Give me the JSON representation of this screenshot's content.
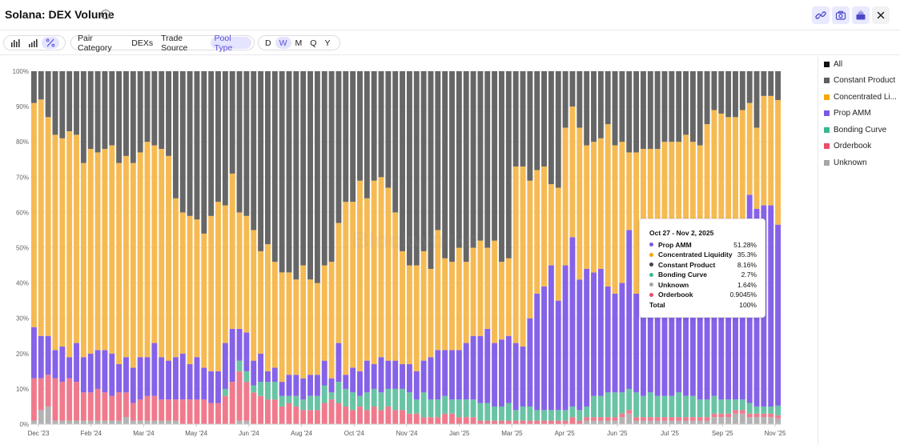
{
  "header": {
    "title": "Solana: DEX Volume",
    "info_icon": "info-icon",
    "buttons": [
      "link-icon",
      "camera-icon",
      "add-to-dashboard-icon",
      "close-icon"
    ]
  },
  "toolbar": {
    "chart_modes": [
      "bar-chart-icon",
      "stacked-bar-icon",
      "percent-icon"
    ],
    "active_mode": "percent-icon",
    "groupings": [
      "Pair Category",
      "DEXs",
      "Trade Source",
      "Pool Type"
    ],
    "active_grouping": "Pool Type",
    "periods": [
      "D",
      "W",
      "M",
      "Q",
      "Y"
    ],
    "active_period": "W"
  },
  "legend": [
    {
      "label": "All",
      "color": "#111111"
    },
    {
      "label": "Constant Product",
      "color": "#5f5f5f"
    },
    {
      "label": "Concentrated Li...",
      "color": "#f2a900"
    },
    {
      "label": "Prop AMM",
      "color": "#7b57e6"
    },
    {
      "label": "Bonding Curve",
      "color": "#3fb593"
    },
    {
      "label": "Orderbook",
      "color": "#ea4f68"
    },
    {
      "label": "Unknown",
      "color": "#a6a6a6"
    }
  ],
  "tooltip": {
    "date": "Oct 27 - Nov 2, 2025",
    "rows": [
      {
        "name": "Prop AMM",
        "value": "51.28%",
        "color": "#7b57e6"
      },
      {
        "name": "Concentrated Liquidity",
        "value": "35.3%",
        "color": "#f2a900"
      },
      {
        "name": "Constant Product",
        "value": "8.16%",
        "color": "#444444"
      },
      {
        "name": "Bonding Curve",
        "value": "2.7%",
        "color": "#3fb593"
      },
      {
        "name": "Unknown",
        "value": "1.64%",
        "color": "#a6a6a6"
      },
      {
        "name": "Orderbook",
        "value": "0.9045%",
        "color": "#ea4f68"
      }
    ],
    "total_label": "Total",
    "total_value": "100%"
  },
  "watermark": "Blockworks",
  "chart_data": {
    "type": "bar",
    "stacked": "percent",
    "title": "",
    "xlabel": "",
    "ylabel": "",
    "ylim": [
      0,
      100
    ],
    "y_ticks": [
      "0%",
      "10%",
      "20%",
      "30%",
      "40%",
      "50%",
      "60%",
      "70%",
      "80%",
      "90%",
      "100%"
    ],
    "x_tick_labels": [
      "Dec '23",
      "Feb '24",
      "Mar '24",
      "May '24",
      "Jun '24",
      "Aug '24",
      "Oct '24",
      "Nov '24",
      "Jan '25",
      "Mar '25",
      "Apr '25",
      "Jun '25",
      "Jul '25",
      "Sep '25",
      "Nov '25"
    ],
    "grid": true,
    "legend_position": "right",
    "stack_order": [
      "Unknown",
      "Orderbook",
      "Bonding Curve",
      "Prop AMM",
      "Concentrated Liquidity",
      "Constant Product"
    ],
    "series_colors": {
      "Unknown": "#b3b3b3",
      "Orderbook": "#f07a8c",
      "Bonding Curve": "#68c4a4",
      "Prop AMM": "#8562e8",
      "Concentrated Liquidity": "#f6ba52",
      "Constant Product": "#666666"
    },
    "points": [
      {
        "unk": 1,
        "ob": 12,
        "bc": 0,
        "prop": 14.5,
        "cl": 63.5,
        "cp": 9
      },
      {
        "unk": 4,
        "ob": 9,
        "bc": 0,
        "prop": 12,
        "cl": 67,
        "cp": 8
      },
      {
        "unk": 5,
        "ob": 9,
        "bc": 0,
        "prop": 11,
        "cl": 62,
        "cp": 13
      },
      {
        "unk": 1,
        "ob": 12,
        "bc": 0,
        "prop": 8,
        "cl": 61,
        "cp": 18
      },
      {
        "unk": 1,
        "ob": 11,
        "bc": 0,
        "prop": 10,
        "cl": 59,
        "cp": 19
      },
      {
        "unk": 1,
        "ob": 12,
        "bc": 0,
        "prop": 6,
        "cl": 64,
        "cp": 17
      },
      {
        "unk": 1,
        "ob": 11,
        "bc": 0,
        "prop": 11,
        "cl": 59,
        "cp": 18
      },
      {
        "unk": 1,
        "ob": 8,
        "bc": 0,
        "prop": 10,
        "cl": 55,
        "cp": 26
      },
      {
        "unk": 1,
        "ob": 8,
        "bc": 0,
        "prop": 11,
        "cl": 58,
        "cp": 22
      },
      {
        "unk": 1,
        "ob": 9,
        "bc": 0,
        "prop": 11,
        "cl": 56,
        "cp": 23
      },
      {
        "unk": 1,
        "ob": 8,
        "bc": 0,
        "prop": 12,
        "cl": 57,
        "cp": 22
      },
      {
        "unk": 1,
        "ob": 7,
        "bc": 0,
        "prop": 12,
        "cl": 59,
        "cp": 21
      },
      {
        "unk": 1,
        "ob": 8,
        "bc": 0,
        "prop": 8,
        "cl": 57,
        "cp": 26
      },
      {
        "unk": 2,
        "ob": 7,
        "bc": 0,
        "prop": 10,
        "cl": 57,
        "cp": 24
      },
      {
        "unk": 1,
        "ob": 5,
        "bc": 0,
        "prop": 10,
        "cl": 58,
        "cp": 26
      },
      {
        "unk": 1,
        "ob": 6,
        "bc": 0,
        "prop": 12,
        "cl": 58,
        "cp": 23
      },
      {
        "unk": 1,
        "ob": 7,
        "bc": 0,
        "prop": 11,
        "cl": 61,
        "cp": 20
      },
      {
        "unk": 1,
        "ob": 7,
        "bc": 0,
        "prop": 15,
        "cl": 56,
        "cp": 21
      },
      {
        "unk": 1,
        "ob": 6,
        "bc": 0,
        "prop": 12,
        "cl": 59,
        "cp": 22
      },
      {
        "unk": 1,
        "ob": 6,
        "bc": 0,
        "prop": 11,
        "cl": 58,
        "cp": 24
      },
      {
        "unk": 1,
        "ob": 6,
        "bc": 0,
        "prop": 12,
        "cl": 45,
        "cp": 36
      },
      {
        "unk": 0,
        "ob": 7,
        "bc": 0,
        "prop": 13,
        "cl": 40,
        "cp": 40
      },
      {
        "unk": 0,
        "ob": 7,
        "bc": 0,
        "prop": 10,
        "cl": 42,
        "cp": 41
      },
      {
        "unk": 0,
        "ob": 7,
        "bc": 0,
        "prop": 12,
        "cl": 39,
        "cp": 42
      },
      {
        "unk": 0,
        "ob": 7,
        "bc": 0,
        "prop": 9,
        "cl": 38,
        "cp": 46
      },
      {
        "unk": 0,
        "ob": 6,
        "bc": 0,
        "prop": 9,
        "cl": 44,
        "cp": 41
      },
      {
        "unk": 0,
        "ob": 6,
        "bc": 0,
        "prop": 9,
        "cl": 48,
        "cp": 37
      },
      {
        "unk": 0,
        "ob": 8,
        "bc": 2,
        "prop": 13,
        "cl": 39,
        "cp": 38
      },
      {
        "unk": 0,
        "ob": 12,
        "bc": 0,
        "prop": 15,
        "cl": 44,
        "cp": 29
      },
      {
        "unk": 1,
        "ob": 14,
        "bc": 3,
        "prop": 9,
        "cl": 33,
        "cp": 40
      },
      {
        "unk": 1,
        "ob": 11,
        "bc": 3,
        "prop": 11,
        "cl": 33,
        "cp": 41
      },
      {
        "unk": 0,
        "ob": 9,
        "bc": 2,
        "prop": 7,
        "cl": 37,
        "cp": 45
      },
      {
        "unk": 0,
        "ob": 8,
        "bc": 4,
        "prop": 8,
        "cl": 29,
        "cp": 51
      },
      {
        "unk": 0,
        "ob": 7,
        "bc": 5,
        "prop": 3,
        "cl": 36,
        "cp": 49
      },
      {
        "unk": 0,
        "ob": 7,
        "bc": 5,
        "prop": 4,
        "cl": 30,
        "cp": 54
      },
      {
        "unk": 0,
        "ob": 5,
        "bc": 3,
        "prop": 4,
        "cl": 31,
        "cp": 57
      },
      {
        "unk": 0,
        "ob": 6,
        "bc": 2,
        "prop": 6,
        "cl": 29,
        "cp": 57
      },
      {
        "unk": 0,
        "ob": 5,
        "bc": 3,
        "prop": 6,
        "cl": 27,
        "cp": 59
      },
      {
        "unk": 0,
        "ob": 4,
        "bc": 3,
        "prop": 6,
        "cl": 32,
        "cp": 55
      },
      {
        "unk": 0,
        "ob": 4,
        "bc": 4,
        "prop": 6,
        "cl": 27,
        "cp": 59
      },
      {
        "unk": 0,
        "ob": 4,
        "bc": 4,
        "prop": 6,
        "cl": 26,
        "cp": 60
      },
      {
        "unk": 0,
        "ob": 6,
        "bc": 5,
        "prop": 7,
        "cl": 27,
        "cp": 55
      },
      {
        "unk": 0,
        "ob": 7,
        "bc": 2,
        "prop": 4,
        "cl": 33,
        "cp": 54
      },
      {
        "unk": 0,
        "ob": 6,
        "bc": 6,
        "prop": 11,
        "cl": 34,
        "cp": 43
      },
      {
        "unk": 0,
        "ob": 5,
        "bc": 5,
        "prop": 4,
        "cl": 49,
        "cp": 37
      },
      {
        "unk": 0,
        "ob": 4,
        "bc": 5,
        "prop": 7,
        "cl": 47,
        "cp": 37
      },
      {
        "unk": 0,
        "ob": 5,
        "bc": 3,
        "prop": 7,
        "cl": 54,
        "cp": 31
      },
      {
        "unk": 0,
        "ob": 4,
        "bc": 5,
        "prop": 9,
        "cl": 46,
        "cp": 36
      },
      {
        "unk": 0,
        "ob": 5,
        "bc": 5,
        "prop": 7,
        "cl": 52,
        "cp": 31
      },
      {
        "unk": 0,
        "ob": 4,
        "bc": 5,
        "prop": 10,
        "cl": 51,
        "cp": 30
      },
      {
        "unk": 0,
        "ob": 5,
        "bc": 5,
        "prop": 8,
        "cl": 49,
        "cp": 33
      },
      {
        "unk": 0,
        "ob": 4,
        "bc": 6,
        "prop": 8,
        "cl": 42,
        "cp": 40
      },
      {
        "unk": 0,
        "ob": 4,
        "bc": 6,
        "prop": 7,
        "cl": 32,
        "cp": 51
      },
      {
        "unk": 0,
        "ob": 3,
        "bc": 6,
        "prop": 8,
        "cl": 28,
        "cp": 55
      },
      {
        "unk": 0,
        "ob": 3,
        "bc": 4,
        "prop": 8,
        "cl": 30,
        "cp": 55
      },
      {
        "unk": 0,
        "ob": 2,
        "bc": 7,
        "prop": 9,
        "cl": 31,
        "cp": 51
      },
      {
        "unk": 0,
        "ob": 2,
        "bc": 5,
        "prop": 12,
        "cl": 25,
        "cp": 56
      },
      {
        "unk": 0,
        "ob": 2,
        "bc": 5,
        "prop": 14,
        "cl": 34,
        "cp": 45
      },
      {
        "unk": 0,
        "ob": 3,
        "bc": 5,
        "prop": 13,
        "cl": 26,
        "cp": 53
      },
      {
        "unk": 0,
        "ob": 3,
        "bc": 4,
        "prop": 14,
        "cl": 25,
        "cp": 54
      },
      {
        "unk": 0,
        "ob": 2,
        "bc": 5,
        "prop": 14,
        "cl": 29,
        "cp": 50
      },
      {
        "unk": 0,
        "ob": 2,
        "bc": 5,
        "prop": 16,
        "cl": 23,
        "cp": 54
      },
      {
        "unk": 0,
        "ob": 2,
        "bc": 5,
        "prop": 18,
        "cl": 25,
        "cp": 50
      },
      {
        "unk": 0,
        "ob": 1,
        "bc": 5,
        "prop": 19,
        "cl": 27,
        "cp": 48
      },
      {
        "unk": 0,
        "ob": 1,
        "bc": 5,
        "prop": 21,
        "cl": 23,
        "cp": 50
      },
      {
        "unk": 0,
        "ob": 1,
        "bc": 4,
        "prop": 18,
        "cl": 29,
        "cp": 48
      },
      {
        "unk": 0,
        "ob": 1,
        "bc": 4,
        "prop": 19,
        "cl": 22,
        "cp": 54
      },
      {
        "unk": 0,
        "ob": 1,
        "bc": 5,
        "prop": 19,
        "cl": 22,
        "cp": 53
      },
      {
        "unk": 0,
        "ob": 1,
        "bc": 3,
        "prop": 19,
        "cl": 50,
        "cp": 27
      },
      {
        "unk": 0,
        "ob": 1,
        "bc": 4,
        "prop": 17,
        "cl": 51,
        "cp": 27
      },
      {
        "unk": 0,
        "ob": 1,
        "bc": 4,
        "prop": 25,
        "cl": 39,
        "cp": 31
      },
      {
        "unk": 0,
        "ob": 1,
        "bc": 3,
        "prop": 33,
        "cl": 35,
        "cp": 28
      },
      {
        "unk": 0,
        "ob": 1,
        "bc": 3,
        "prop": 35,
        "cl": 34,
        "cp": 27
      },
      {
        "unk": 0,
        "ob": 1,
        "bc": 3,
        "prop": 41,
        "cl": 23,
        "cp": 32
      },
      {
        "unk": 0,
        "ob": 1,
        "bc": 3,
        "prop": 31,
        "cl": 32,
        "cp": 33
      },
      {
        "unk": 0,
        "ob": 1,
        "bc": 3,
        "prop": 41,
        "cl": 39,
        "cp": 16
      },
      {
        "unk": 0,
        "ob": 2,
        "bc": 3,
        "prop": 48,
        "cl": 37,
        "cp": 10
      },
      {
        "unk": 0,
        "ob": 1,
        "bc": 3,
        "prop": 37,
        "cl": 43,
        "cp": 16
      },
      {
        "unk": 1,
        "ob": 1,
        "bc": 3,
        "prop": 39,
        "cl": 35,
        "cp": 21
      },
      {
        "unk": 1,
        "ob": 1,
        "bc": 6,
        "prop": 35,
        "cl": 37,
        "cp": 20
      },
      {
        "unk": 1,
        "ob": 1,
        "bc": 6,
        "prop": 36,
        "cl": 37,
        "cp": 19
      },
      {
        "unk": 1,
        "ob": 1,
        "bc": 7,
        "prop": 30,
        "cl": 46,
        "cp": 15
      },
      {
        "unk": 1,
        "ob": 1,
        "bc": 7,
        "prop": 28,
        "cl": 42,
        "cp": 21
      },
      {
        "unk": 2,
        "ob": 1,
        "bc": 6,
        "prop": 31,
        "cl": 40,
        "cp": 20
      },
      {
        "unk": 3,
        "ob": 1,
        "bc": 6,
        "prop": 45,
        "cl": 22,
        "cp": 23
      },
      {
        "unk": 1,
        "ob": 1,
        "bc": 7,
        "prop": 28,
        "cl": 40,
        "cp": 23
      },
      {
        "unk": 1,
        "ob": 1,
        "bc": 6,
        "prop": 28,
        "cl": 42,
        "cp": 22
      },
      {
        "unk": 1,
        "ob": 1,
        "bc": 7,
        "prop": 25,
        "cl": 44,
        "cp": 22
      },
      {
        "unk": 1,
        "ob": 1,
        "bc": 6,
        "prop": 31,
        "cl": 39,
        "cp": 22
      },
      {
        "unk": 1,
        "ob": 1,
        "bc": 6,
        "prop": 36,
        "cl": 36,
        "cp": 20
      },
      {
        "unk": 1,
        "ob": 1,
        "bc": 6,
        "prop": 31,
        "cl": 41,
        "cp": 20
      },
      {
        "unk": 1,
        "ob": 1,
        "bc": 7,
        "prop": 22,
        "cl": 49,
        "cp": 20
      },
      {
        "unk": 1,
        "ob": 1,
        "bc": 6,
        "prop": 31,
        "cl": 43,
        "cp": 18
      },
      {
        "unk": 1,
        "ob": 1,
        "bc": 6,
        "prop": 37,
        "cl": 35,
        "cp": 20
      },
      {
        "unk": 1,
        "ob": 1,
        "bc": 5,
        "prop": 33,
        "cl": 39,
        "cp": 21
      },
      {
        "unk": 1,
        "ob": 1,
        "bc": 5,
        "prop": 38,
        "cl": 40,
        "cp": 15
      },
      {
        "unk": 2,
        "ob": 1,
        "bc": 5,
        "prop": 41,
        "cl": 40,
        "cp": 11
      },
      {
        "unk": 2,
        "ob": 1,
        "bc": 4,
        "prop": 31,
        "cl": 50,
        "cp": 12
      },
      {
        "unk": 2,
        "ob": 1,
        "bc": 4,
        "prop": 41,
        "cl": 39,
        "cp": 13
      },
      {
        "unk": 3,
        "ob": 1,
        "bc": 3,
        "prop": 43,
        "cl": 37,
        "cp": 13
      },
      {
        "unk": 3,
        "ob": 1,
        "bc": 3,
        "prop": 44,
        "cl": 38,
        "cp": 11
      },
      {
        "unk": 2,
        "ob": 1,
        "bc": 3,
        "prop": 59,
        "cl": 26,
        "cp": 9
      },
      {
        "unk": 2,
        "ob": 1,
        "bc": 2,
        "prop": 56,
        "cl": 23,
        "cp": 16
      },
      {
        "unk": 2,
        "ob": 1,
        "bc": 2,
        "prop": 57,
        "cl": 31,
        "cp": 7
      },
      {
        "unk": 2,
        "ob": 1,
        "bc": 2,
        "prop": 57,
        "cl": 31,
        "cp": 7
      },
      {
        "unk": 1.64,
        "ob": 0.9045,
        "bc": 2.7,
        "prop": 51.28,
        "cl": 35.3,
        "cp": 8.16
      }
    ]
  }
}
